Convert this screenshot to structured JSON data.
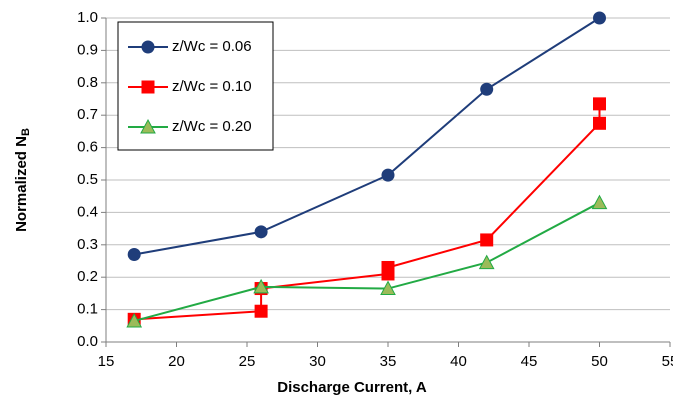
{
  "chart_data": {
    "type": "line",
    "x_label": "Discharge Current, A",
    "y_label": "Normalized N",
    "y_label_subscript": "B",
    "xlim": [
      15,
      55
    ],
    "xticks": [
      15,
      20,
      25,
      30,
      35,
      40,
      45,
      50,
      55
    ],
    "ylim": [
      0,
      1
    ],
    "yticks": [
      {
        "value": 0,
        "label": "0.0"
      },
      0.1,
      0.2,
      0.3,
      0.4,
      0.5,
      0.6,
      0.7,
      0.8,
      0.9,
      {
        "value": 1,
        "label": "1.0"
      }
    ],
    "grid": true,
    "legend": "upper left",
    "series": [
      {
        "name": "z/Wc = 0.06",
        "color": "#1f3d7a",
        "marker": "circle",
        "x": [
          17,
          26,
          35,
          42,
          50
        ],
        "values": [
          0.27,
          0.34,
          0.515,
          0.78,
          1.0
        ]
      },
      {
        "name": "z/Wc = 0.10",
        "color": "#ff0000",
        "marker": "square",
        "x": [
          17,
          26,
          26,
          35,
          35,
          42,
          50,
          50
        ],
        "values": [
          0.07,
          0.095,
          0.165,
          0.21,
          0.23,
          0.315,
          0.675,
          0.735
        ]
      },
      {
        "name": "z/Wc = 0.20",
        "color": "#22aa44",
        "marker": "triangle",
        "x": [
          17,
          26,
          35,
          42,
          50
        ],
        "values": [
          0.065,
          0.17,
          0.165,
          0.245,
          0.43
        ]
      }
    ]
  }
}
